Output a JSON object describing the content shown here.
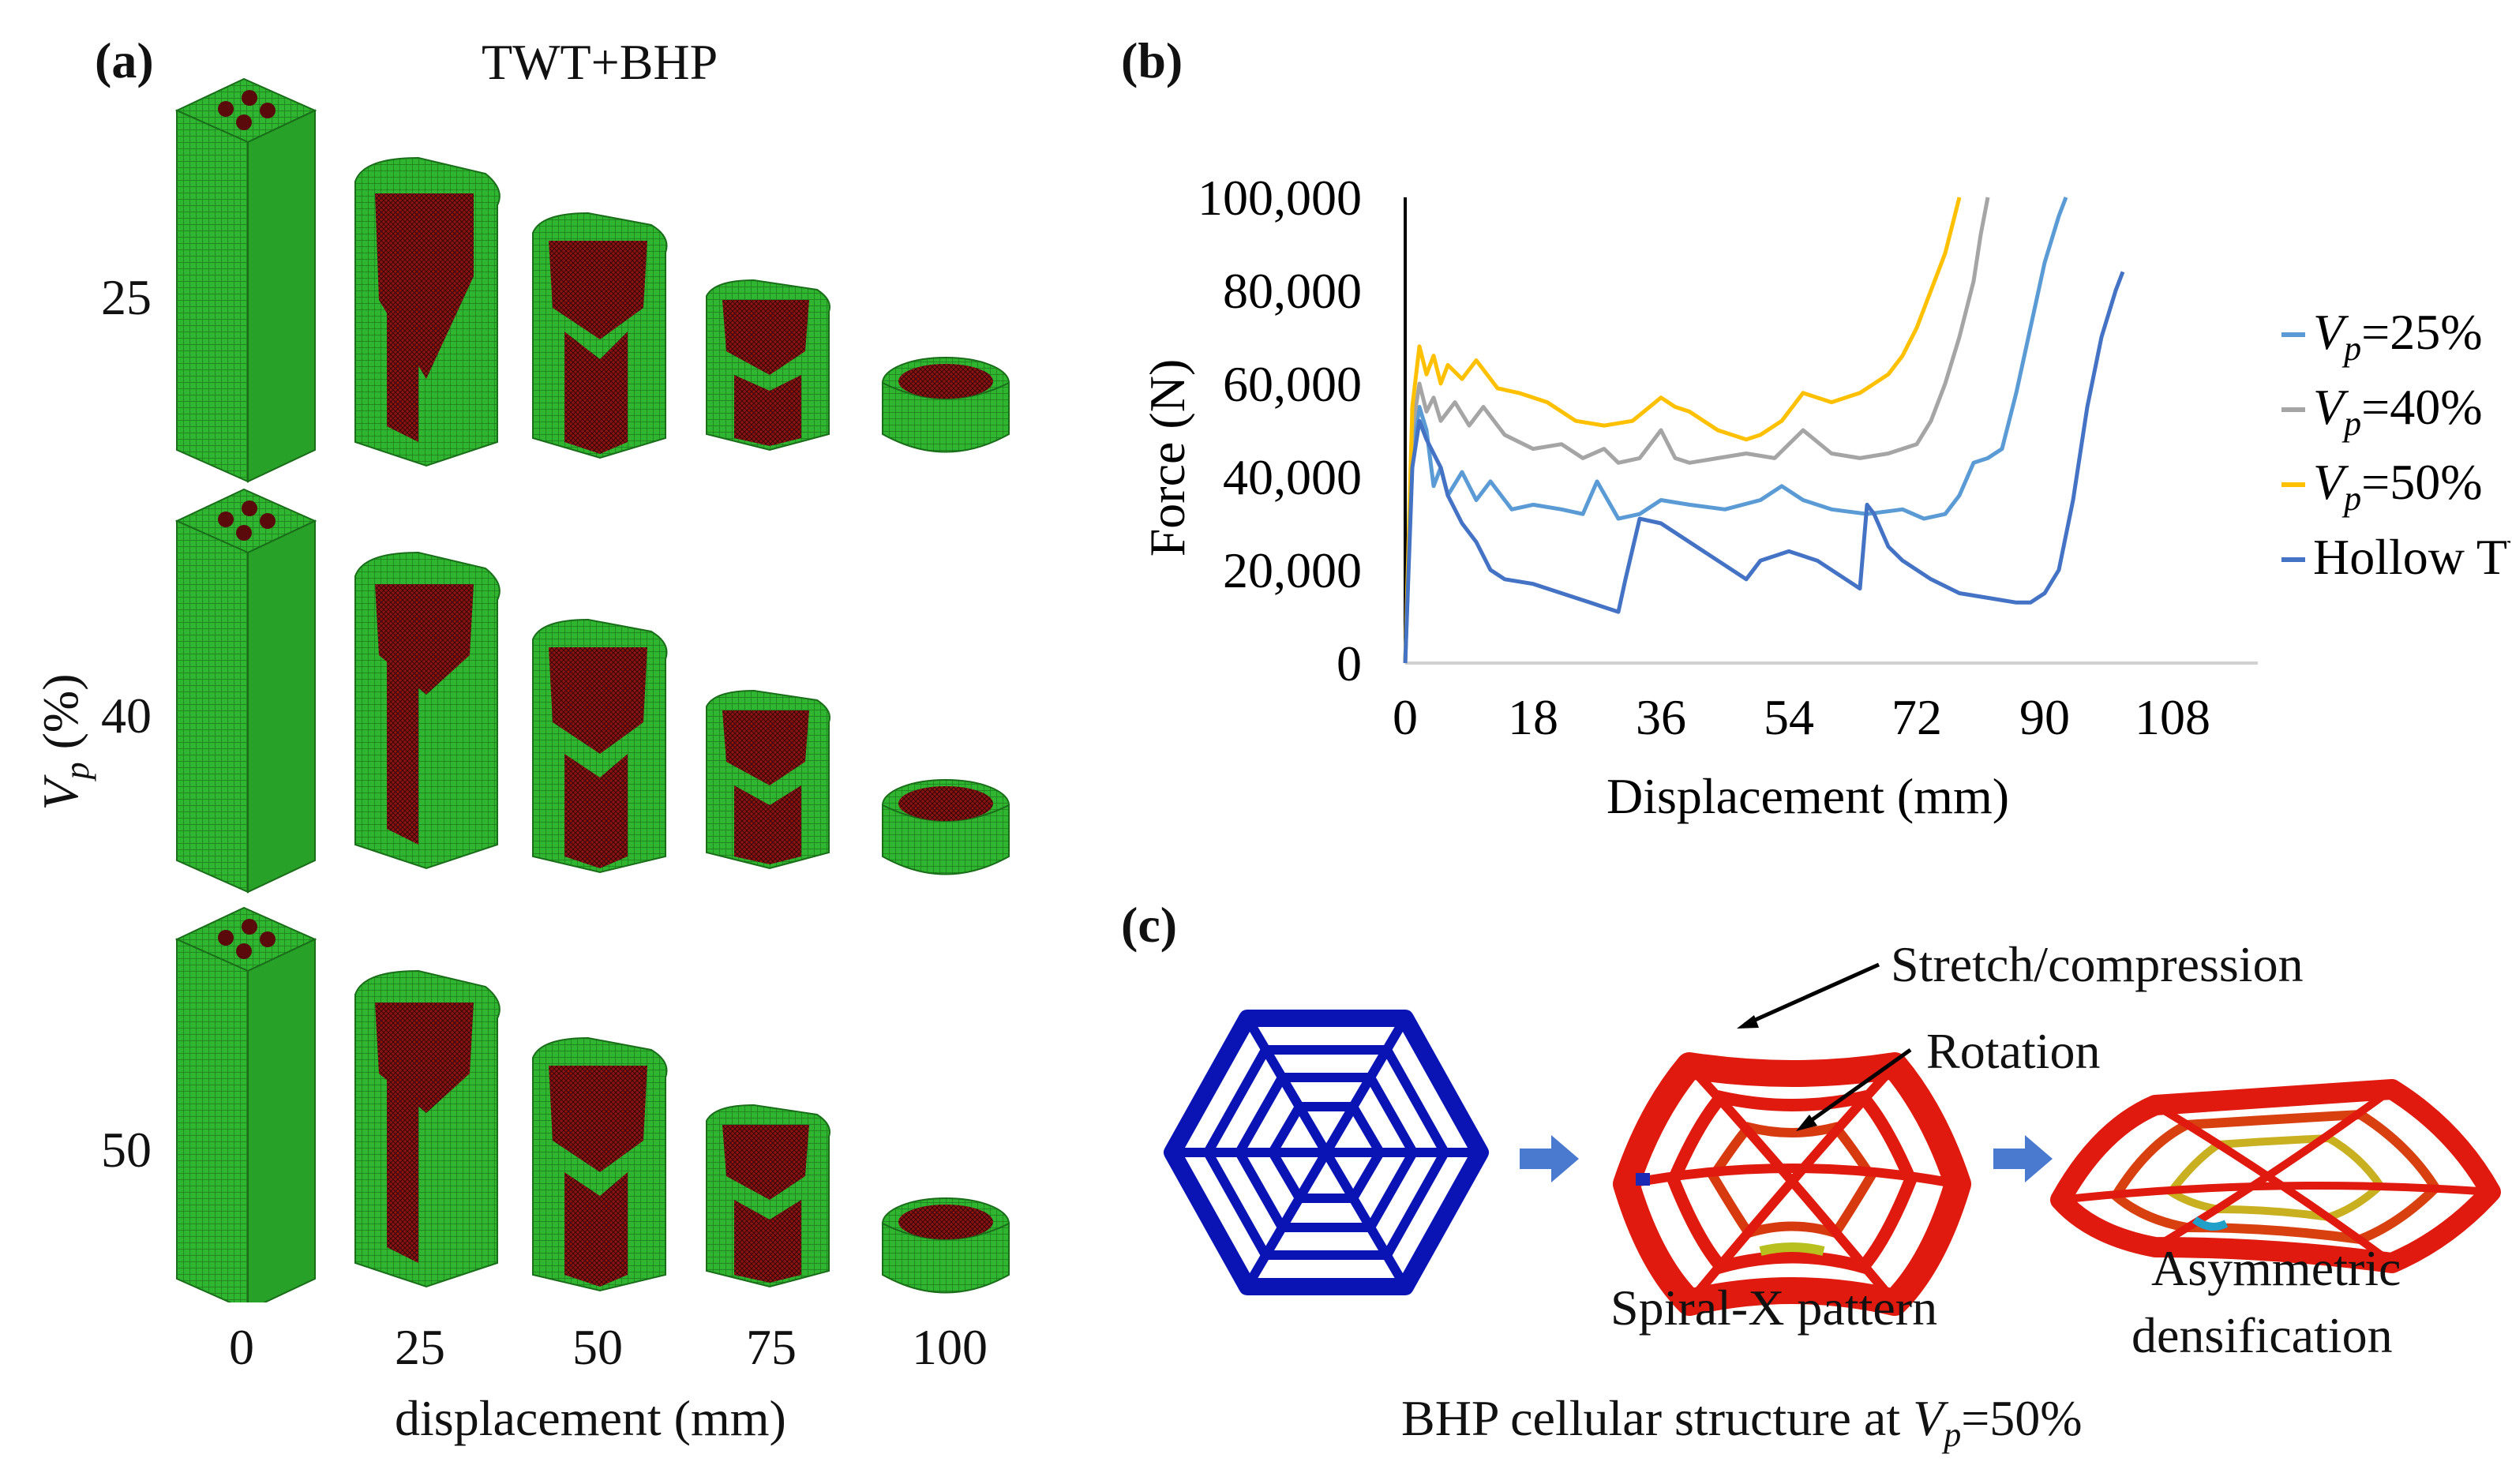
{
  "panel_a": {
    "label": "(a)",
    "title": "TWT+BHP",
    "y_axis_label": "V",
    "y_axis_sub": "p",
    "y_axis_unit": " (%)",
    "rows": [
      "25",
      "40",
      "50"
    ],
    "x_ticks": [
      "0",
      "25",
      "50",
      "75",
      "100"
    ],
    "x_label": "displacement (mm)",
    "colors": {
      "tube_green": "#2db82d",
      "core_red": "#7a1010"
    }
  },
  "panel_b": {
    "label": "(b)",
    "chart_data": {
      "type": "line",
      "xlabel": "Displacement (mm)",
      "ylabel": "Force (N)",
      "xlim": [
        0,
        120
      ],
      "ylim": [
        0,
        100000
      ],
      "x_ticks": [
        "0",
        "18",
        "36",
        "54",
        "72",
        "90",
        "108"
      ],
      "y_ticks": [
        "0",
        "20,000",
        "40,000",
        "60,000",
        "80,000",
        "100,000"
      ],
      "legend_position": "right",
      "series": [
        {
          "name_main": "V",
          "name_sub": "p",
          "name_tail": "=25%",
          "color": "#5b9bd5",
          "x": [
            0,
            1,
            2,
            3,
            4,
            5,
            6,
            8,
            10,
            12,
            15,
            18,
            22,
            25,
            27,
            30,
            33,
            36,
            40,
            45,
            50,
            53,
            56,
            60,
            65,
            70,
            73,
            76,
            78,
            80,
            82,
            84,
            86,
            88,
            90,
            92,
            93
          ],
          "y": [
            0,
            45000,
            55000,
            50000,
            38000,
            42000,
            36000,
            41000,
            35000,
            39000,
            33000,
            34000,
            33000,
            32000,
            39000,
            31000,
            32000,
            35000,
            34000,
            33000,
            35000,
            38000,
            35000,
            33000,
            32000,
            33000,
            31000,
            32000,
            36000,
            43000,
            44000,
            46000,
            58000,
            72000,
            86000,
            96000,
            100000
          ]
        },
        {
          "name_main": "V",
          "name_sub": "p",
          "name_tail": "=40%",
          "color": "#a5a5a5",
          "x": [
            0,
            1,
            2,
            3,
            4,
            5,
            7,
            9,
            11,
            14,
            18,
            22,
            25,
            28,
            30,
            33,
            36,
            38,
            40,
            44,
            48,
            52,
            56,
            60,
            64,
            68,
            72,
            74,
            76,
            78,
            80,
            81,
            82
          ],
          "y": [
            0,
            50000,
            60000,
            54000,
            57000,
            52000,
            56000,
            51000,
            55000,
            49000,
            46000,
            47000,
            44000,
            46000,
            43000,
            44000,
            50000,
            44000,
            43000,
            44000,
            45000,
            44000,
            50000,
            45000,
            44000,
            45000,
            47000,
            52000,
            60000,
            70000,
            82000,
            92000,
            100000
          ]
        },
        {
          "name_main": "V",
          "name_sub": "p",
          "name_tail": "=50%",
          "color": "#ffc000",
          "x": [
            0,
            1,
            2,
            3,
            4,
            5,
            6,
            8,
            10,
            13,
            16,
            20,
            24,
            28,
            32,
            36,
            38,
            40,
            44,
            48,
            50,
            53,
            56,
            60,
            64,
            68,
            70,
            72,
            74,
            76,
            77,
            78
          ],
          "y": [
            0,
            55000,
            68000,
            62000,
            66000,
            60000,
            64000,
            61000,
            65000,
            59000,
            58000,
            56000,
            52000,
            51000,
            52000,
            57000,
            55000,
            54000,
            50000,
            48000,
            49000,
            52000,
            58000,
            56000,
            58000,
            62000,
            66000,
            72000,
            80000,
            88000,
            94000,
            100000
          ]
        },
        {
          "name_main": "Hollow TWT",
          "name_sub": "",
          "name_tail": "",
          "color": "#4472c4",
          "x": [
            0,
            1,
            2,
            3,
            4,
            5,
            6,
            8,
            10,
            12,
            14,
            18,
            22,
            26,
            28,
            30,
            31,
            33,
            36,
            40,
            44,
            48,
            50,
            54,
            58,
            62,
            64,
            65,
            66,
            68,
            70,
            74,
            78,
            82,
            86,
            88,
            90,
            92,
            94,
            96,
            98,
            100,
            101
          ],
          "y": [
            0,
            42000,
            52000,
            48000,
            45000,
            42000,
            36000,
            30000,
            26000,
            20000,
            18000,
            17000,
            15000,
            13000,
            12000,
            11000,
            18000,
            31000,
            30000,
            26000,
            22000,
            18000,
            22000,
            24000,
            22000,
            18000,
            16000,
            34000,
            32000,
            25000,
            22000,
            18000,
            15000,
            14000,
            13000,
            13000,
            15000,
            20000,
            35000,
            55000,
            70000,
            80000,
            84000
          ]
        }
      ]
    }
  },
  "panel_c": {
    "label": "(c)",
    "annotation_stretch": "Stretch/compression",
    "annotation_rotation": "Rotation",
    "caption_mid": "Spiral-X pattern",
    "caption_right_1": "Asymmetric",
    "caption_right_2": "densification",
    "bottom_caption_main": "BHP cellular structure at ",
    "bottom_caption_var": "V",
    "bottom_caption_sub": "p",
    "bottom_caption_tail": "=50%",
    "colors": {
      "hex_blue": "#0a14b4",
      "arrow_blue": "#4a7ad0",
      "deformed_red": "#e01a0e"
    }
  }
}
